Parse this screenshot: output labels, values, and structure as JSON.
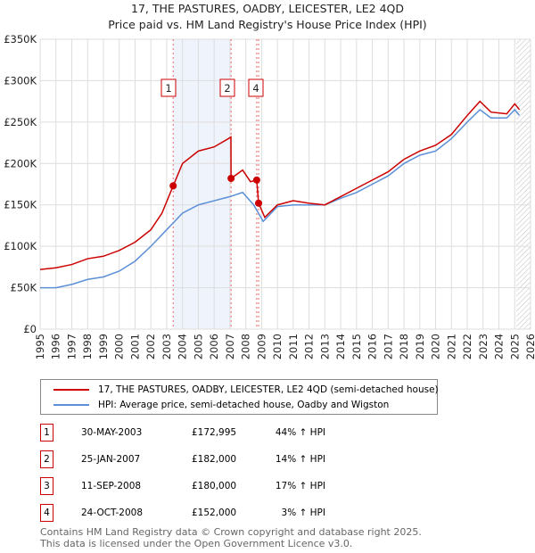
{
  "chart_data": {
    "type": "line",
    "title": "17, THE PASTURES, OADBY, LEICESTER, LE2 4QD",
    "subtitle": "Price paid vs. HM Land Registry's House Price Index (HPI)",
    "xlim": [
      1995,
      2026
    ],
    "ylim": [
      0,
      350000
    ],
    "x_ticks": [
      "1995",
      "1996",
      "1997",
      "1998",
      "1999",
      "2000",
      "2001",
      "2002",
      "2003",
      "2004",
      "2005",
      "2006",
      "2007",
      "2008",
      "2009",
      "2010",
      "2011",
      "2012",
      "2013",
      "2014",
      "2015",
      "2016",
      "2017",
      "2018",
      "2019",
      "2020",
      "2021",
      "2022",
      "2023",
      "2024",
      "2025",
      "2026"
    ],
    "y_ticks": [
      {
        "v": 0,
        "label": "£0"
      },
      {
        "v": 50000,
        "label": "£50K"
      },
      {
        "v": 100000,
        "label": "£100K"
      },
      {
        "v": 150000,
        "label": "£150K"
      },
      {
        "v": 200000,
        "label": "£200K"
      },
      {
        "v": 250000,
        "label": "£250K"
      },
      {
        "v": 300000,
        "label": "£300K"
      },
      {
        "v": 350000,
        "label": "£350K"
      }
    ],
    "grid": true,
    "series": [
      {
        "name": "17, THE PASTURES, OADBY, LEICESTER, LE2 4QD (semi-detached house)",
        "color": "#cc0000",
        "x": [
          1995,
          1996,
          1997,
          1998,
          1999,
          2000,
          2001,
          2002,
          2002.7,
          2003.41,
          2004,
          2005,
          2006,
          2006.9,
          2007.06,
          2007.07,
          2007.8,
          2008.3,
          2008.69,
          2008.81,
          2009.2,
          2010,
          2011,
          2012,
          2013,
          2014,
          2015,
          2016,
          2017,
          2018,
          2019,
          2020,
          2021,
          2022,
          2022.8,
          2023.5,
          2024.5,
          2025,
          2025.3
        ],
        "y": [
          72000,
          74000,
          78000,
          85000,
          88000,
          95000,
          105000,
          120000,
          140000,
          172995,
          200000,
          215000,
          220000,
          230000,
          232000,
          182000,
          192000,
          178000,
          180000,
          152000,
          135000,
          150000,
          155000,
          152000,
          150000,
          160000,
          170000,
          180000,
          190000,
          205000,
          215000,
          222000,
          235000,
          258000,
          275000,
          262000,
          260000,
          272000,
          265000
        ]
      },
      {
        "name": "HPI: Average price, semi-detached house, Oadby and Wigston",
        "color": "#5b8fd6",
        "x": [
          1995,
          1996,
          1997,
          1998,
          1999,
          2000,
          2001,
          2002,
          2003,
          2004,
          2005,
          2006,
          2007,
          2007.8,
          2008.5,
          2009.1,
          2010,
          2011,
          2012,
          2013,
          2014,
          2015,
          2016,
          2017,
          2018,
          2019,
          2020,
          2021,
          2022,
          2022.8,
          2023.5,
          2024.5,
          2025,
          2025.3
        ],
        "y": [
          50000,
          50000,
          54000,
          60000,
          63000,
          70000,
          82000,
          100000,
          120000,
          140000,
          150000,
          155000,
          160000,
          165000,
          150000,
          130000,
          148000,
          150000,
          150000,
          150000,
          158000,
          165000,
          175000,
          185000,
          200000,
          210000,
          215000,
          230000,
          250000,
          265000,
          255000,
          255000,
          265000,
          258000
        ]
      }
    ],
    "sales": [
      {
        "n": "1",
        "x": 2003.41,
        "y": 172995,
        "date": "30-MAY-2003",
        "price": "£172,995",
        "hpi": "44% ↑ HPI"
      },
      {
        "n": "2",
        "x": 2007.07,
        "y": 182000,
        "date": "25-JAN-2007",
        "price": "£182,000",
        "hpi": "14% ↑ HPI"
      },
      {
        "n": "3",
        "x": 2008.69,
        "y": 180000,
        "date": "11-SEP-2008",
        "price": "£180,000",
        "hpi": "17% ↑ HPI"
      },
      {
        "n": "4",
        "x": 2008.81,
        "y": 152000,
        "date": "24-OCT-2008",
        "price": "£152,000",
        "hpi": "3% ↑ HPI"
      }
    ],
    "shaded_range": [
      2003.41,
      2007.07
    ],
    "forecast_from": 2025.1
  },
  "footer": {
    "line1": "Contains HM Land Registry data © Crown copyright and database right 2025.",
    "line2": "This data is licensed under the Open Government Licence v3.0."
  }
}
